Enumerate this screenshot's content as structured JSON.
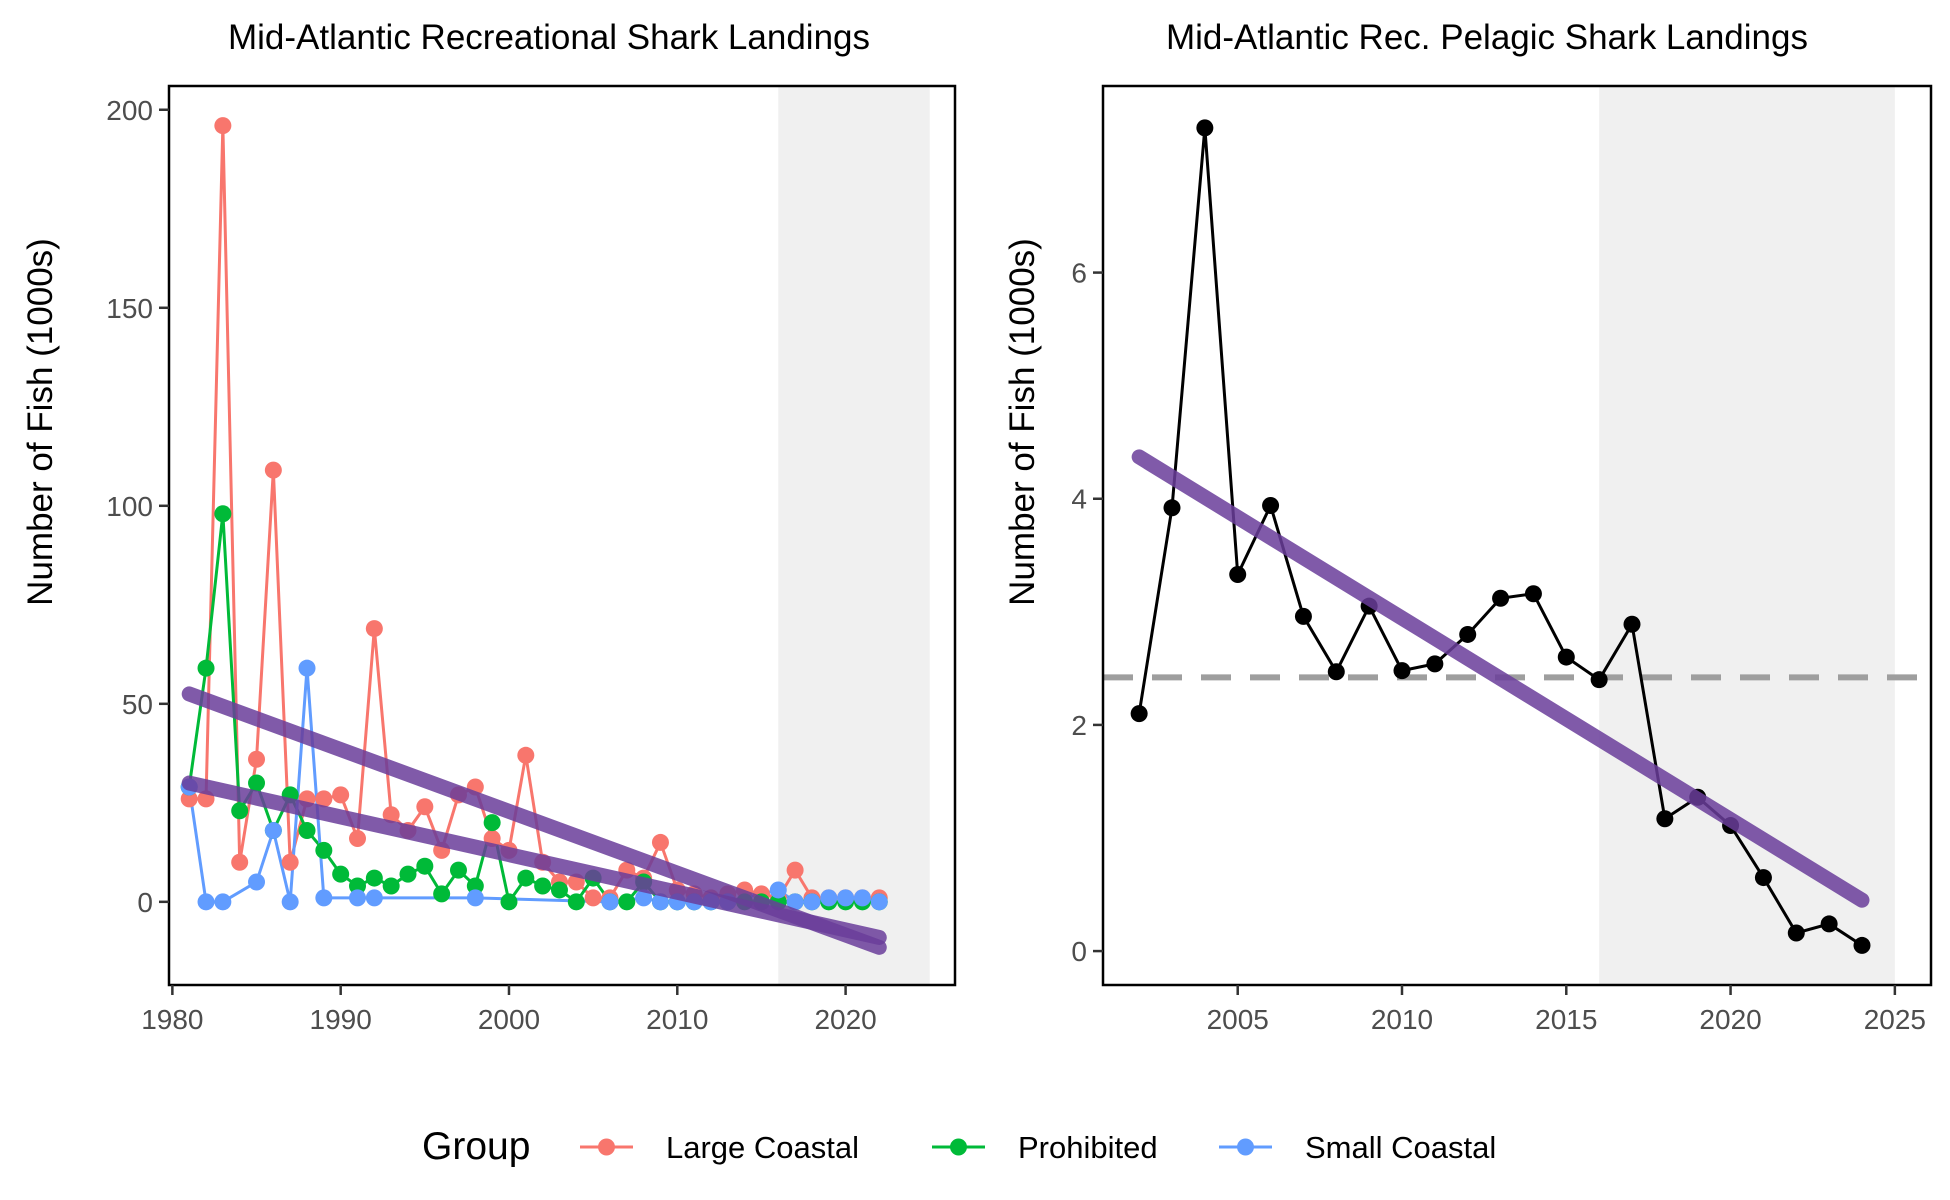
{
  "chart_data": [
    {
      "type": "line",
      "title": "Mid-Atlantic Recreational Shark Landings",
      "xlabel": "",
      "ylabel": "Number of Fish (1000s)",
      "xlim": [
        1979.8,
        2026.5
      ],
      "ylim": [
        -21,
        206
      ],
      "xticks": [
        1980,
        1990,
        2000,
        2010,
        2020
      ],
      "yticks": [
        0,
        50,
        100,
        150,
        200
      ],
      "shaded_region": [
        2016,
        2025
      ],
      "grid": false,
      "series": [
        {
          "name": "Large Coastal",
          "color": "#F8766D",
          "x": [
            1981,
            1982,
            1983,
            1984,
            1985,
            1986,
            1987,
            1988,
            1989,
            1990,
            1991,
            1992,
            1993,
            1994,
            1995,
            1996,
            1997,
            1998,
            1999,
            2000,
            2001,
            2002,
            2003,
            2004,
            2005,
            2006,
            2007,
            2008,
            2009,
            2010,
            2011,
            2012,
            2013,
            2014,
            2015,
            2016,
            2017,
            2018,
            2019,
            2020,
            2021,
            2022
          ],
          "y": [
            26,
            26,
            196,
            10,
            36,
            109,
            10,
            26,
            26,
            27,
            16,
            69,
            22,
            18,
            24,
            13,
            27,
            29,
            16,
            13,
            37,
            10,
            5,
            5,
            1,
            1,
            8,
            6,
            15,
            3,
            2,
            1,
            2,
            3,
            2,
            1,
            8,
            1,
            1,
            1,
            1,
            1
          ]
        },
        {
          "name": "Prohibited",
          "color": "#00BA38",
          "x": [
            1981,
            1982,
            1983,
            1984,
            1985,
            1986,
            1987,
            1988,
            1989,
            1990,
            1991,
            1992,
            1993,
            1994,
            1995,
            1996,
            1997,
            1998,
            1999,
            2000,
            2001,
            2002,
            2003,
            2004,
            2005,
            2006,
            2007,
            2008,
            2009,
            2010,
            2011,
            2012,
            2013,
            2014,
            2015,
            2016,
            2017,
            2018,
            2019,
            2020,
            2021,
            2022
          ],
          "y": [
            29,
            59,
            98,
            23,
            30,
            18,
            27,
            18,
            13,
            7,
            4,
            6,
            4,
            7,
            9,
            2,
            8,
            4,
            20,
            0,
            6,
            4,
            3,
            0,
            6,
            0,
            0,
            5,
            0,
            0,
            0,
            0,
            0,
            0,
            0,
            0,
            0,
            0,
            0,
            0,
            0,
            0
          ]
        },
        {
          "name": "Small Coastal",
          "color": "#619CFF",
          "x": [
            1981,
            1982,
            1983,
            1985,
            1986,
            1987,
            1988,
            1989,
            1991,
            1992,
            1998,
            2006,
            2008,
            2009,
            2010,
            2011,
            2012,
            2013,
            2016,
            2017,
            2018,
            2019,
            2020,
            2021,
            2022
          ],
          "y": [
            29,
            0,
            0,
            5,
            18,
            0,
            59,
            1,
            1,
            1,
            1,
            0,
            1,
            0,
            0,
            0,
            0,
            0,
            3,
            0,
            0,
            1,
            1,
            1,
            0
          ]
        }
      ],
      "trend_lines": [
        {
          "x": [
            1981,
            2022
          ],
          "y": [
            52.5,
            -11.5
          ],
          "color": "#6A3D9A"
        },
        {
          "x": [
            1981,
            2022
          ],
          "y": [
            30,
            -9
          ],
          "color": "#6A3D9A"
        }
      ],
      "legend": {
        "title": "Group",
        "position": "bottom",
        "entries": [
          "Large Coastal",
          "Prohibited",
          "Small Coastal"
        ]
      }
    },
    {
      "type": "line",
      "title": "Mid-Atlantic Rec. Pelagic Shark Landings",
      "xlabel": "",
      "ylabel": "Number of Fish (1000s)",
      "xlim": [
        2000.9,
        2026.1
      ],
      "ylim": [
        -0.3,
        7.65
      ],
      "xticks": [
        2005,
        2010,
        2015,
        2020,
        2025
      ],
      "yticks": [
        0,
        2,
        4,
        6
      ],
      "shaded_region": [
        2016,
        2025
      ],
      "grid": false,
      "series": [
        {
          "name": "",
          "color": "#000000",
          "x": [
            2002,
            2003,
            2004,
            2005,
            2006,
            2007,
            2008,
            2009,
            2010,
            2011,
            2012,
            2013,
            2014,
            2015,
            2016,
            2017,
            2018,
            2019,
            2020,
            2021,
            2022,
            2023,
            2024
          ],
          "y": [
            2.1,
            3.92,
            7.28,
            3.33,
            3.94,
            2.96,
            2.47,
            3.05,
            2.48,
            2.54,
            2.8,
            3.12,
            3.16,
            2.6,
            2.4,
            2.89,
            1.17,
            1.36,
            1.11,
            0.65,
            0.16,
            0.24,
            0.05
          ]
        }
      ],
      "trend_lines": [
        {
          "x": [
            2002,
            2024
          ],
          "y": [
            4.37,
            0.45
          ],
          "color": "#6A3D9A"
        }
      ],
      "reference_line": {
        "y": 2.42,
        "style": "dashed",
        "color": "#9E9E9E"
      }
    }
  ]
}
